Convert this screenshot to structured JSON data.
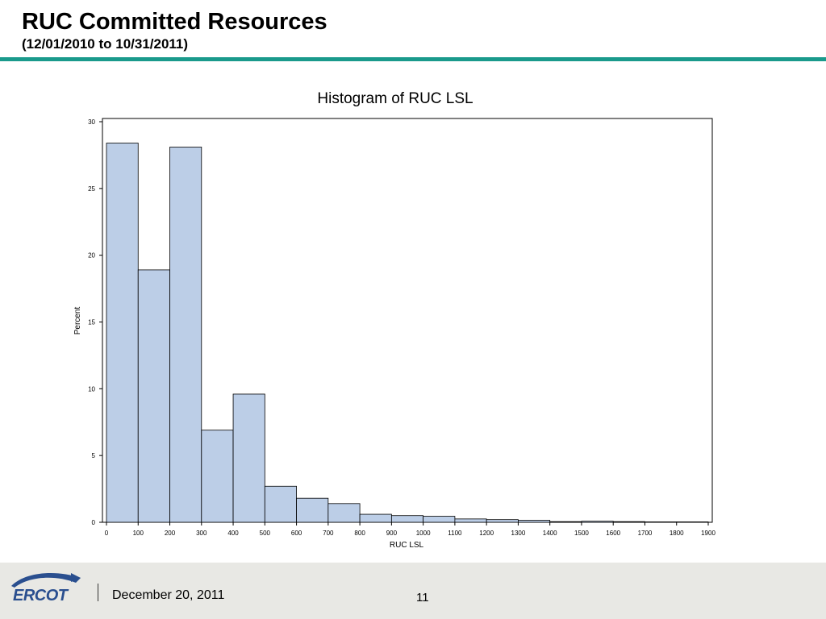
{
  "slide": {
    "title": "RUC Committed Resources",
    "subtitle": "(12/01/2010 to 10/31/2011)"
  },
  "footer": {
    "logo_text": "ERCOT",
    "date": "December 20, 2011",
    "page_number": "11"
  },
  "colors": {
    "accent_rule": "#1a9a8c",
    "bar_fill": "#bccee7",
    "bar_stroke": "#000000",
    "logo_blue": "#2a4f8f"
  },
  "chart_data": {
    "type": "bar",
    "title": "Histogram of RUC LSL",
    "xlabel": "RUC LSL",
    "ylabel": "Percent",
    "xlim": [
      0,
      1900
    ],
    "ylim": [
      0,
      30
    ],
    "x_ticks": [
      0,
      100,
      200,
      300,
      400,
      500,
      600,
      700,
      800,
      900,
      1000,
      1100,
      1200,
      1300,
      1400,
      1500,
      1600,
      1700,
      1800,
      1900
    ],
    "y_ticks": [
      0,
      5,
      10,
      15,
      20,
      25,
      30
    ],
    "bin_width": 100,
    "bins": [
      {
        "start": 0,
        "end": 100,
        "value": 28.4
      },
      {
        "start": 100,
        "end": 200,
        "value": 18.9
      },
      {
        "start": 200,
        "end": 300,
        "value": 28.1
      },
      {
        "start": 300,
        "end": 400,
        "value": 6.9
      },
      {
        "start": 400,
        "end": 500,
        "value": 9.6
      },
      {
        "start": 500,
        "end": 600,
        "value": 2.7
      },
      {
        "start": 600,
        "end": 700,
        "value": 1.8
      },
      {
        "start": 700,
        "end": 800,
        "value": 1.4
      },
      {
        "start": 800,
        "end": 900,
        "value": 0.6
      },
      {
        "start": 900,
        "end": 1000,
        "value": 0.5
      },
      {
        "start": 1000,
        "end": 1100,
        "value": 0.45
      },
      {
        "start": 1100,
        "end": 1200,
        "value": 0.25
      },
      {
        "start": 1200,
        "end": 1300,
        "value": 0.2
      },
      {
        "start": 1300,
        "end": 1400,
        "value": 0.15
      },
      {
        "start": 1400,
        "end": 1500,
        "value": 0.05
      },
      {
        "start": 1500,
        "end": 1600,
        "value": 0.08
      },
      {
        "start": 1600,
        "end": 1700,
        "value": 0.05
      },
      {
        "start": 1700,
        "end": 1800,
        "value": 0.03
      },
      {
        "start": 1800,
        "end": 1900,
        "value": 0.03
      }
    ],
    "grid": false,
    "legend": "none"
  }
}
